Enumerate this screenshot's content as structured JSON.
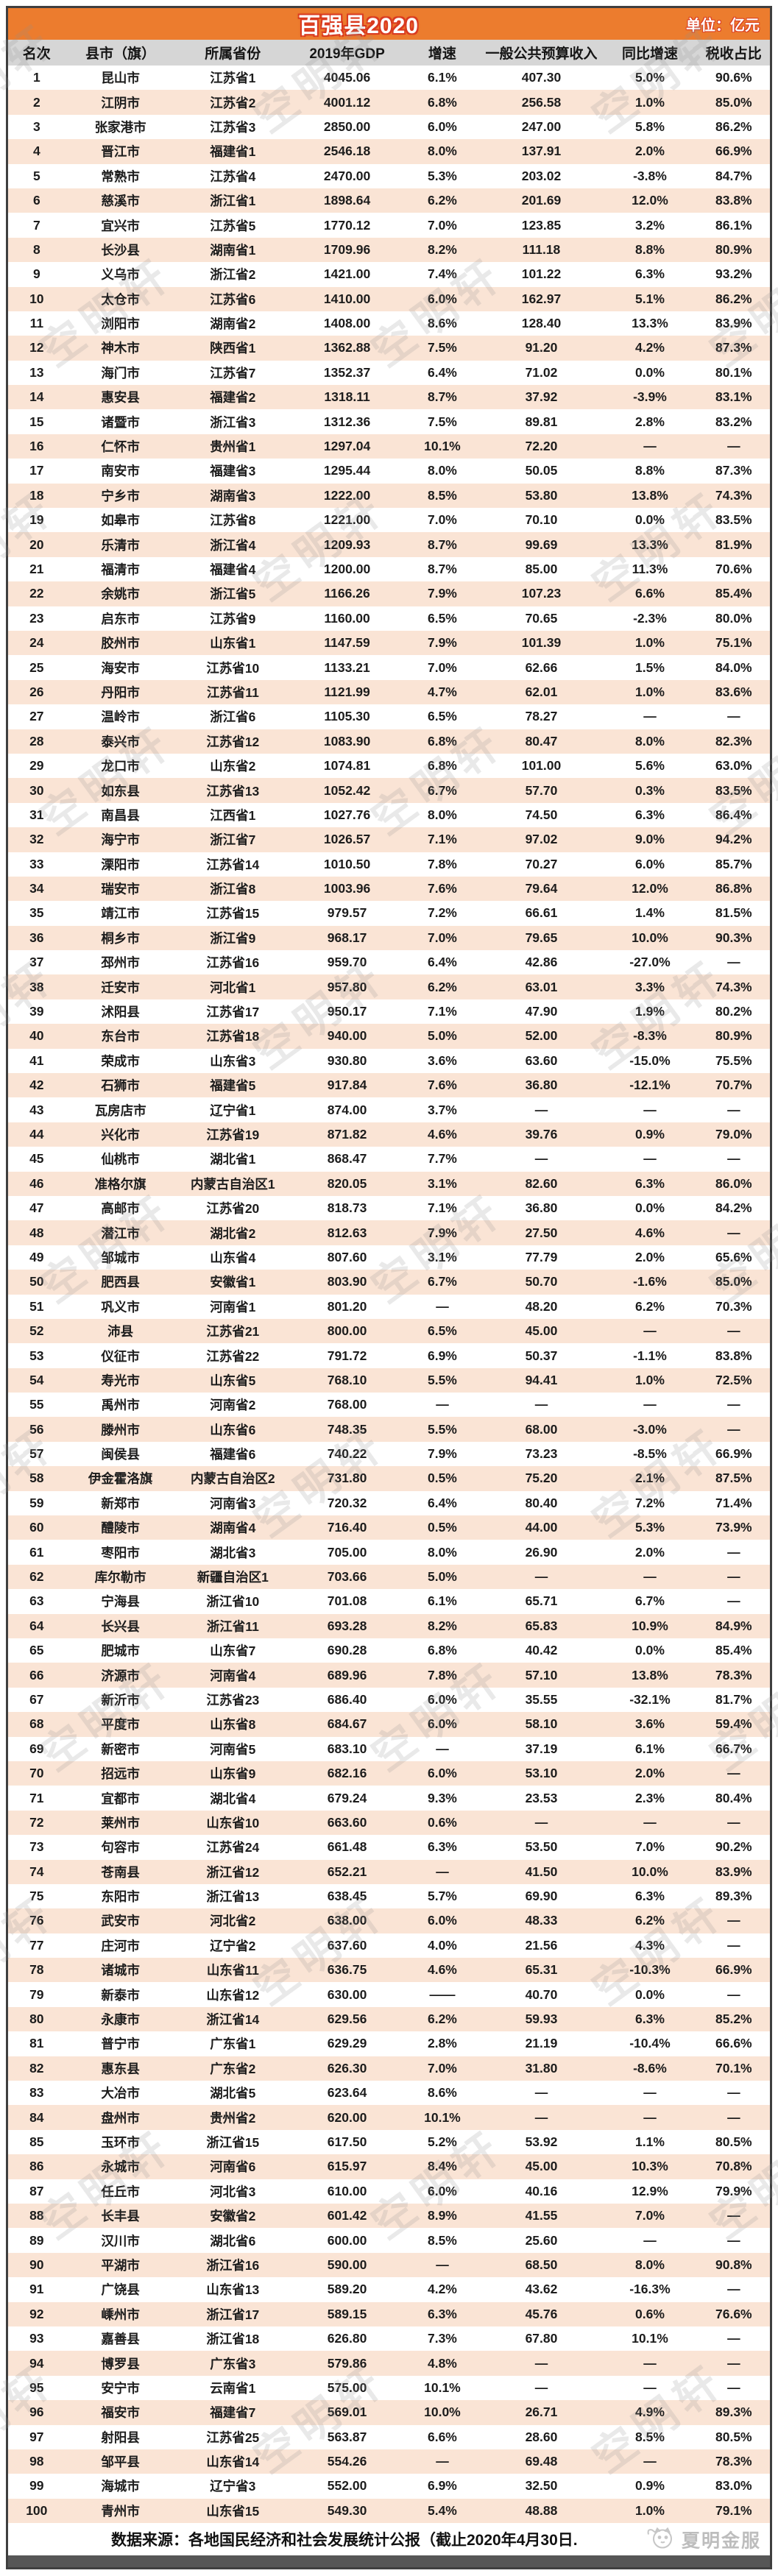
{
  "banner": {
    "title": "百强县2020",
    "unit_label": "单位：亿元"
  },
  "columns": [
    "名次",
    "县市（旗）",
    "所属省份",
    "2019年GDP",
    "增速",
    "一般公共预算收入",
    "同比增速",
    "税收占比"
  ],
  "rows": [
    [
      "1",
      "昆山市",
      "江苏省1",
      "4045.06",
      "6.1%",
      "407.30",
      "5.0%",
      "90.6%"
    ],
    [
      "2",
      "江阴市",
      "江苏省2",
      "4001.12",
      "6.8%",
      "256.58",
      "1.0%",
      "85.0%"
    ],
    [
      "3",
      "张家港市",
      "江苏省3",
      "2850.00",
      "6.0%",
      "247.00",
      "5.8%",
      "86.2%"
    ],
    [
      "4",
      "晋江市",
      "福建省1",
      "2546.18",
      "8.0%",
      "137.91",
      "2.0%",
      "66.9%"
    ],
    [
      "5",
      "常熟市",
      "江苏省4",
      "2470.00",
      "5.3%",
      "203.02",
      "-3.8%",
      "84.7%"
    ],
    [
      "6",
      "慈溪市",
      "浙江省1",
      "1898.64",
      "6.2%",
      "201.69",
      "12.0%",
      "83.8%"
    ],
    [
      "7",
      "宜兴市",
      "江苏省5",
      "1770.12",
      "7.0%",
      "123.85",
      "3.2%",
      "86.1%"
    ],
    [
      "8",
      "长沙县",
      "湖南省1",
      "1709.96",
      "8.2%",
      "111.18",
      "8.8%",
      "80.9%"
    ],
    [
      "9",
      "义乌市",
      "浙江省2",
      "1421.00",
      "7.4%",
      "101.22",
      "6.3%",
      "93.2%"
    ],
    [
      "10",
      "太仓市",
      "江苏省6",
      "1410.00",
      "6.0%",
      "162.97",
      "5.1%",
      "86.2%"
    ],
    [
      "11",
      "浏阳市",
      "湖南省2",
      "1408.00",
      "8.6%",
      "128.40",
      "13.3%",
      "83.9%"
    ],
    [
      "12",
      "神木市",
      "陕西省1",
      "1362.88",
      "7.5%",
      "91.20",
      "4.2%",
      "87.3%"
    ],
    [
      "13",
      "海门市",
      "江苏省7",
      "1352.37",
      "6.4%",
      "71.02",
      "0.0%",
      "80.1%"
    ],
    [
      "14",
      "惠安县",
      "福建省2",
      "1318.11",
      "8.7%",
      "37.92",
      "-3.9%",
      "83.1%"
    ],
    [
      "15",
      "诸暨市",
      "浙江省3",
      "1312.36",
      "7.5%",
      "89.81",
      "2.8%",
      "83.2%"
    ],
    [
      "16",
      "仁怀市",
      "贵州省1",
      "1297.04",
      "10.1%",
      "72.20",
      "—",
      "—"
    ],
    [
      "17",
      "南安市",
      "福建省3",
      "1295.44",
      "8.0%",
      "50.05",
      "8.8%",
      "87.3%"
    ],
    [
      "18",
      "宁乡市",
      "湖南省3",
      "1222.00",
      "8.5%",
      "53.80",
      "13.8%",
      "74.3%"
    ],
    [
      "19",
      "如皋市",
      "江苏省8",
      "1221.00",
      "7.0%",
      "70.10",
      "0.0%",
      "83.5%"
    ],
    [
      "20",
      "乐清市",
      "浙江省4",
      "1209.93",
      "8.7%",
      "99.69",
      "13.3%",
      "81.9%"
    ],
    [
      "21",
      "福清市",
      "福建省4",
      "1200.00",
      "8.7%",
      "85.00",
      "11.3%",
      "70.6%"
    ],
    [
      "22",
      "余姚市",
      "浙江省5",
      "1166.26",
      "7.9%",
      "107.23",
      "6.6%",
      "85.4%"
    ],
    [
      "23",
      "启东市",
      "江苏省9",
      "1160.00",
      "6.5%",
      "70.65",
      "-2.3%",
      "80.0%"
    ],
    [
      "24",
      "胶州市",
      "山东省1",
      "1147.59",
      "7.9%",
      "101.39",
      "1.0%",
      "75.1%"
    ],
    [
      "25",
      "海安市",
      "江苏省10",
      "1133.21",
      "7.0%",
      "62.66",
      "1.5%",
      "84.0%"
    ],
    [
      "26",
      "丹阳市",
      "江苏省11",
      "1121.99",
      "4.7%",
      "62.01",
      "1.0%",
      "83.6%"
    ],
    [
      "27",
      "温岭市",
      "浙江省6",
      "1105.30",
      "6.5%",
      "78.27",
      "—",
      "—"
    ],
    [
      "28",
      "泰兴市",
      "江苏省12",
      "1083.90",
      "6.8%",
      "80.47",
      "8.0%",
      "82.3%"
    ],
    [
      "29",
      "龙口市",
      "山东省2",
      "1074.81",
      "6.8%",
      "101.00",
      "5.6%",
      "63.0%"
    ],
    [
      "30",
      "如东县",
      "江苏省13",
      "1052.42",
      "6.7%",
      "57.70",
      "0.3%",
      "83.5%"
    ],
    [
      "31",
      "南昌县",
      "江西省1",
      "1027.76",
      "8.0%",
      "74.50",
      "6.3%",
      "86.4%"
    ],
    [
      "32",
      "海宁市",
      "浙江省7",
      "1026.57",
      "7.1%",
      "97.02",
      "9.0%",
      "94.2%"
    ],
    [
      "33",
      "溧阳市",
      "江苏省14",
      "1010.50",
      "7.8%",
      "70.27",
      "6.0%",
      "85.7%"
    ],
    [
      "34",
      "瑞安市",
      "浙江省8",
      "1003.96",
      "7.6%",
      "79.64",
      "12.0%",
      "86.8%"
    ],
    [
      "35",
      "靖江市",
      "江苏省15",
      "979.57",
      "7.2%",
      "66.61",
      "1.4%",
      "81.5%"
    ],
    [
      "36",
      "桐乡市",
      "浙江省9",
      "968.17",
      "7.0%",
      "79.65",
      "10.0%",
      "90.3%"
    ],
    [
      "37",
      "邳州市",
      "江苏省16",
      "959.70",
      "6.4%",
      "42.86",
      "-27.0%",
      "—"
    ],
    [
      "38",
      "迁安市",
      "河北省1",
      "957.80",
      "6.2%",
      "63.01",
      "3.3%",
      "74.3%"
    ],
    [
      "39",
      "沭阳县",
      "江苏省17",
      "950.17",
      "7.1%",
      "47.90",
      "1.9%",
      "80.2%"
    ],
    [
      "40",
      "东台市",
      "江苏省18",
      "940.00",
      "5.0%",
      "52.00",
      "-8.3%",
      "80.9%"
    ],
    [
      "41",
      "荣成市",
      "山东省3",
      "930.80",
      "3.6%",
      "63.60",
      "-15.0%",
      "75.5%"
    ],
    [
      "42",
      "石狮市",
      "福建省5",
      "917.84",
      "7.6%",
      "36.80",
      "-12.1%",
      "70.7%"
    ],
    [
      "43",
      "瓦房店市",
      "辽宁省1",
      "874.00",
      "3.7%",
      "—",
      "—",
      "—"
    ],
    [
      "44",
      "兴化市",
      "江苏省19",
      "871.82",
      "4.6%",
      "39.76",
      "0.9%",
      "79.0%"
    ],
    [
      "45",
      "仙桃市",
      "湖北省1",
      "868.47",
      "7.7%",
      "—",
      "—",
      "—"
    ],
    [
      "46",
      "准格尔旗",
      "内蒙古自治区1",
      "820.05",
      "3.1%",
      "82.60",
      "6.3%",
      "86.0%"
    ],
    [
      "47",
      "高邮市",
      "江苏省20",
      "818.73",
      "7.1%",
      "36.80",
      "0.0%",
      "84.2%"
    ],
    [
      "48",
      "潜江市",
      "湖北省2",
      "812.63",
      "7.9%",
      "27.50",
      "4.6%",
      "—"
    ],
    [
      "49",
      "邹城市",
      "山东省4",
      "807.60",
      "3.1%",
      "77.79",
      "2.0%",
      "65.6%"
    ],
    [
      "50",
      "肥西县",
      "安徽省1",
      "803.90",
      "6.7%",
      "50.70",
      "-1.6%",
      "85.0%"
    ],
    [
      "51",
      "巩义市",
      "河南省1",
      "801.20",
      "—",
      "48.20",
      "6.2%",
      "70.3%"
    ],
    [
      "52",
      "沛县",
      "江苏省21",
      "800.00",
      "6.5%",
      "45.00",
      "—",
      "—"
    ],
    [
      "53",
      "仪征市",
      "江苏省22",
      "791.72",
      "6.9%",
      "50.37",
      "-1.1%",
      "83.8%"
    ],
    [
      "54",
      "寿光市",
      "山东省5",
      "768.10",
      "5.5%",
      "94.41",
      "1.0%",
      "72.5%"
    ],
    [
      "55",
      "禹州市",
      "河南省2",
      "768.00",
      "—",
      "—",
      "—",
      "—"
    ],
    [
      "56",
      "滕州市",
      "山东省6",
      "748.35",
      "5.5%",
      "68.00",
      "-3.0%",
      "—"
    ],
    [
      "57",
      "闽侯县",
      "福建省6",
      "740.22",
      "7.9%",
      "73.23",
      "-8.5%",
      "66.9%"
    ],
    [
      "58",
      "伊金霍洛旗",
      "内蒙古自治区2",
      "731.80",
      "0.5%",
      "75.20",
      "2.1%",
      "87.5%"
    ],
    [
      "59",
      "新郑市",
      "河南省3",
      "720.32",
      "6.4%",
      "80.40",
      "7.2%",
      "71.4%"
    ],
    [
      "60",
      "醴陵市",
      "湖南省4",
      "716.40",
      "0.5%",
      "44.00",
      "5.3%",
      "73.9%"
    ],
    [
      "61",
      "枣阳市",
      "湖北省3",
      "705.00",
      "8.0%",
      "26.90",
      "2.0%",
      "—"
    ],
    [
      "62",
      "库尔勒市",
      "新疆自治区1",
      "703.66",
      "5.0%",
      "—",
      "—",
      "—"
    ],
    [
      "63",
      "宁海县",
      "浙江省10",
      "701.08",
      "6.1%",
      "65.71",
      "6.7%",
      "—"
    ],
    [
      "64",
      "长兴县",
      "浙江省11",
      "693.28",
      "8.2%",
      "65.83",
      "10.9%",
      "84.9%"
    ],
    [
      "65",
      "肥城市",
      "山东省7",
      "690.28",
      "6.8%",
      "40.42",
      "0.0%",
      "85.4%"
    ],
    [
      "66",
      "济源市",
      "河南省4",
      "689.96",
      "7.8%",
      "57.10",
      "13.8%",
      "78.3%"
    ],
    [
      "67",
      "新沂市",
      "江苏省23",
      "686.40",
      "6.0%",
      "35.55",
      "-32.1%",
      "81.7%"
    ],
    [
      "68",
      "平度市",
      "山东省8",
      "684.67",
      "6.0%",
      "58.10",
      "3.6%",
      "59.4%"
    ],
    [
      "69",
      "新密市",
      "河南省5",
      "683.10",
      "—",
      "37.19",
      "6.1%",
      "66.7%"
    ],
    [
      "70",
      "招远市",
      "山东省9",
      "682.16",
      "6.0%",
      "53.10",
      "2.0%",
      "—"
    ],
    [
      "71",
      "宜都市",
      "湖北省4",
      "679.24",
      "9.3%",
      "23.53",
      "2.3%",
      "80.4%"
    ],
    [
      "72",
      "莱州市",
      "山东省10",
      "663.60",
      "0.6%",
      "—",
      "—",
      "—"
    ],
    [
      "73",
      "句容市",
      "江苏省24",
      "661.48",
      "6.3%",
      "53.50",
      "7.0%",
      "90.2%"
    ],
    [
      "74",
      "苍南县",
      "浙江省12",
      "652.21",
      "—",
      "41.50",
      "10.0%",
      "83.9%"
    ],
    [
      "75",
      "东阳市",
      "浙江省13",
      "638.45",
      "5.7%",
      "69.90",
      "6.3%",
      "89.3%"
    ],
    [
      "76",
      "武安市",
      "河北省2",
      "638.00",
      "6.0%",
      "48.33",
      "6.2%",
      "—"
    ],
    [
      "77",
      "庄河市",
      "辽宁省2",
      "637.60",
      "4.0%",
      "21.56",
      "4.3%",
      "—"
    ],
    [
      "78",
      "诸城市",
      "山东省11",
      "636.75",
      "4.6%",
      "65.31",
      "-10.3%",
      "66.9%"
    ],
    [
      "79",
      "新泰市",
      "山东省12",
      "630.00",
      "——",
      "40.70",
      "0.0%",
      "—"
    ],
    [
      "80",
      "永康市",
      "浙江省14",
      "629.56",
      "6.2%",
      "59.93",
      "6.3%",
      "85.2%"
    ],
    [
      "81",
      "普宁市",
      "广东省1",
      "629.29",
      "2.8%",
      "21.19",
      "-10.4%",
      "66.6%"
    ],
    [
      "82",
      "惠东县",
      "广东省2",
      "626.30",
      "7.0%",
      "31.80",
      "-8.6%",
      "70.1%"
    ],
    [
      "83",
      "大冶市",
      "湖北省5",
      "623.64",
      "8.6%",
      "—",
      "—",
      "—"
    ],
    [
      "84",
      "盘州市",
      "贵州省2",
      "620.00",
      "10.1%",
      "—",
      "—",
      "—"
    ],
    [
      "85",
      "玉环市",
      "浙江省15",
      "617.50",
      "5.2%",
      "53.92",
      "1.1%",
      "80.5%"
    ],
    [
      "86",
      "永城市",
      "河南省6",
      "615.97",
      "8.4%",
      "45.00",
      "10.3%",
      "70.8%"
    ],
    [
      "87",
      "任丘市",
      "河北省3",
      "610.00",
      "6.0%",
      "40.16",
      "12.9%",
      "79.9%"
    ],
    [
      "88",
      "长丰县",
      "安徽省2",
      "601.42",
      "8.9%",
      "41.55",
      "7.0%",
      "—"
    ],
    [
      "89",
      "汉川市",
      "湖北省6",
      "600.00",
      "8.5%",
      "25.60",
      "—",
      "—"
    ],
    [
      "90",
      "平湖市",
      "浙江省16",
      "590.00",
      "—",
      "68.50",
      "8.0%",
      "90.8%"
    ],
    [
      "91",
      "广饶县",
      "山东省13",
      "589.20",
      "4.2%",
      "43.62",
      "-16.3%",
      "—"
    ],
    [
      "92",
      "嵊州市",
      "浙江省17",
      "589.15",
      "6.3%",
      "45.76",
      "0.6%",
      "76.6%"
    ],
    [
      "93",
      "嘉善县",
      "浙江省18",
      "626.80",
      "7.3%",
      "67.80",
      "10.1%",
      "—"
    ],
    [
      "94",
      "博罗县",
      "广东省3",
      "579.86",
      "4.8%",
      "—",
      "—",
      "—"
    ],
    [
      "95",
      "安宁市",
      "云南省1",
      "575.00",
      "10.1%",
      "—",
      "—",
      "—"
    ],
    [
      "96",
      "福安市",
      "福建省7",
      "569.01",
      "10.0%",
      "26.71",
      "4.9%",
      "89.3%"
    ],
    [
      "97",
      "射阳县",
      "江苏省25",
      "563.87",
      "6.6%",
      "28.60",
      "8.5%",
      "80.5%"
    ],
    [
      "98",
      "邹平县",
      "山东省14",
      "554.26",
      "—",
      "69.48",
      "—",
      "78.3%"
    ],
    [
      "99",
      "海城市",
      "辽宁省3",
      "552.00",
      "6.9%",
      "32.50",
      "0.9%",
      "83.0%"
    ],
    [
      "100",
      "青州市",
      "山东省15",
      "549.30",
      "5.4%",
      "48.88",
      "1.0%",
      "79.1%"
    ]
  ],
  "footer": {
    "source": "数据来源：各地国民经济和社会发展统计公报（截止2020年4月30日.",
    "brand": "夏明金服"
  },
  "watermark": {
    "text": "空明轩"
  },
  "colors": {
    "banner_orange": "#EC7C2E",
    "title_red": "#D93A20",
    "header_gray": "#D6D6D6",
    "stripe_peach": "#FAE4D5",
    "bottom_bar": "#565656"
  }
}
